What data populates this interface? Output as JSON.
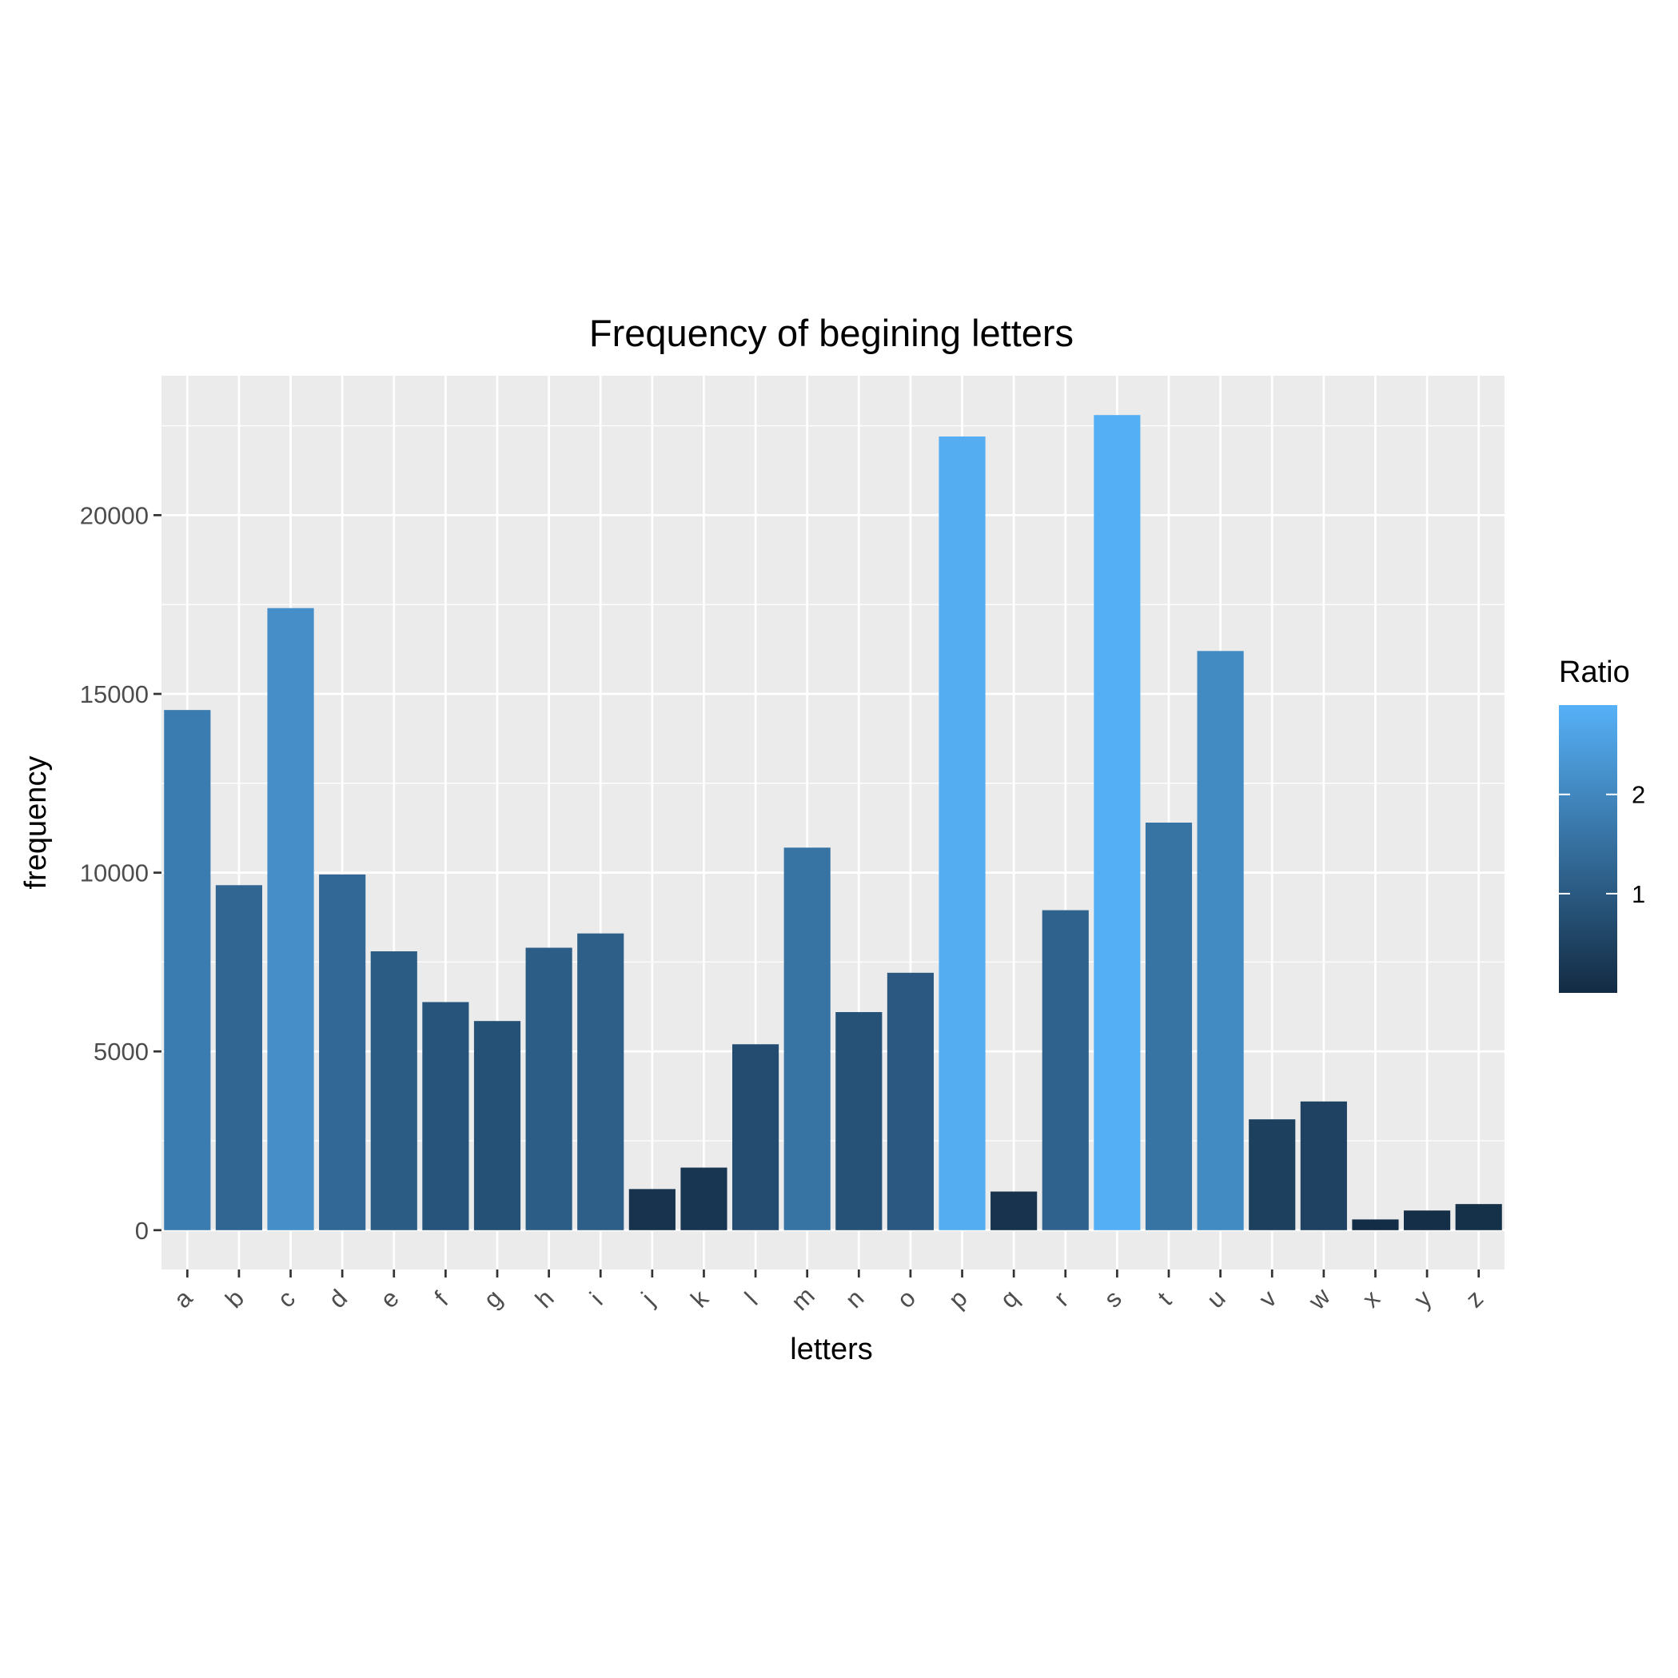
{
  "chart_data": {
    "type": "bar",
    "title": "Frequency of begining letters",
    "xlabel": "letters",
    "ylabel": "frequency",
    "ylim": [
      -1100,
      23900
    ],
    "y_ticks": [
      0,
      5000,
      10000,
      15000,
      20000
    ],
    "categories": [
      "a",
      "b",
      "c",
      "d",
      "e",
      "f",
      "g",
      "h",
      "i",
      "j",
      "k",
      "l",
      "m",
      "n",
      "o",
      "p",
      "q",
      "r",
      "s",
      "t",
      "u",
      "v",
      "w",
      "x",
      "y",
      "z"
    ],
    "values": [
      14550,
      9650,
      17400,
      9950,
      7800,
      6380,
      5850,
      7900,
      8300,
      1150,
      1750,
      5200,
      10700,
      6100,
      7200,
      22200,
      1080,
      8950,
      22800,
      11400,
      16200,
      3100,
      3600,
      300,
      550,
      730
    ],
    "ratio": [
      1.75,
      1.28,
      2.15,
      1.32,
      1.05,
      0.88,
      0.82,
      1.08,
      1.12,
      0.18,
      0.22,
      0.72,
      1.55,
      0.85,
      0.98,
      2.8,
      0.17,
      1.2,
      2.85,
      1.55,
      2.05,
      0.45,
      0.5,
      0.05,
      0.08,
      0.1
    ],
    "grid": true,
    "legend": {
      "title": "Ratio",
      "placement": "right",
      "breaks": [
        1,
        2
      ],
      "break_labels": [
        "1",
        "2"
      ],
      "range": [
        0,
        2.9
      ],
      "low_color": "#132B43",
      "high_color": "#56B1F7"
    },
    "colors": {
      "panel_background": "#EBEBEB",
      "grid_line": "#FFFFFF",
      "tick_mark": "#333333"
    }
  }
}
